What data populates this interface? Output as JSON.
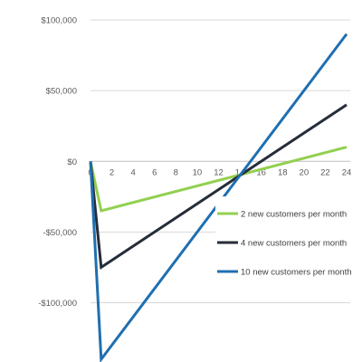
{
  "chart_data": {
    "type": "line",
    "title": "",
    "xlabel": "",
    "ylabel": "",
    "x": [
      0,
      1,
      24
    ],
    "xlim": [
      0,
      24
    ],
    "ylim": [
      -140000,
      100000
    ],
    "x_ticks": [
      {
        "value": 0,
        "label": "0"
      },
      {
        "value": 2,
        "label": "2"
      },
      {
        "value": 4,
        "label": "4"
      },
      {
        "value": 6,
        "label": "6"
      },
      {
        "value": 8,
        "label": "8"
      },
      {
        "value": 10,
        "label": "10"
      },
      {
        "value": 12,
        "label": "12"
      },
      {
        "value": 14,
        "label": "14"
      },
      {
        "value": 16,
        "label": "16"
      },
      {
        "value": 18,
        "label": "18"
      },
      {
        "value": 20,
        "label": "20"
      },
      {
        "value": 22,
        "label": "22"
      },
      {
        "value": 24,
        "label": "24"
      }
    ],
    "y_ticks": [
      {
        "value": 100000,
        "label": "$100,000"
      },
      {
        "value": 50000,
        "label": "$50,000"
      },
      {
        "value": 0,
        "label": "$0"
      },
      {
        "value": -50000,
        "label": "-$50,000"
      },
      {
        "value": -100000,
        "label": "-$100,000"
      }
    ],
    "grid": true,
    "legend_position": "bottom-right",
    "series": [
      {
        "name": "2 new customers per month",
        "color": "#92d050",
        "values": [
          0,
          -35000,
          10000
        ]
      },
      {
        "name": "4 new customers per month",
        "color": "#262d3a",
        "values": [
          0,
          -75000,
          40000
        ]
      },
      {
        "name": "10 new customers per month",
        "color": "#1f6fb0",
        "values": [
          0,
          -140000,
          90000
        ]
      }
    ]
  }
}
